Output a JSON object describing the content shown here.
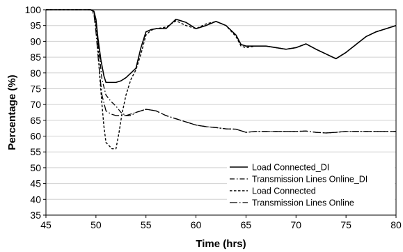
{
  "chart_data": {
    "type": "line",
    "title": "",
    "xlabel": "Time (hrs)",
    "ylabel": "Percentage (%)",
    "xlim": [
      45,
      80
    ],
    "ylim": [
      35,
      100
    ],
    "xticks": [
      "45",
      "50",
      "55",
      "60",
      "65",
      "70",
      "75",
      "80"
    ],
    "yticks": [
      "35",
      "40",
      "45",
      "50",
      "55",
      "60",
      "65",
      "70",
      "75",
      "80",
      "85",
      "90",
      "95",
      "100"
    ],
    "grid": "horizontal",
    "legend": "bottom-right",
    "series": [
      {
        "name": "Load Connected_DI",
        "style": "solid",
        "x": [
          45,
          49.5,
          49.8,
          50,
          50.2,
          50.5,
          50.8,
          51,
          51.5,
          52,
          52.5,
          53,
          53.5,
          54,
          54.5,
          55,
          55.5,
          56,
          57,
          58,
          59,
          60,
          61,
          62,
          63,
          64,
          64.5,
          65,
          66,
          67,
          68,
          69,
          70,
          71,
          72,
          73,
          74,
          75,
          76,
          77,
          78,
          79,
          80
        ],
        "y": [
          100,
          100,
          99.5,
          97,
          91,
          84,
          79,
          77,
          77,
          77,
          77.5,
          78.5,
          80,
          81.5,
          88,
          93,
          93.7,
          94,
          94,
          97,
          96,
          94,
          95,
          96.3,
          95,
          92,
          89,
          88.5,
          88.5,
          88.5,
          88,
          87.5,
          88,
          89.2,
          87.5,
          86,
          84.5,
          86.5,
          89,
          91.5,
          93,
          94,
          95
        ]
      },
      {
        "name": "Transmission Lines Online_DI",
        "style": "dashdot",
        "x": [
          45,
          49.5,
          49.8,
          50,
          50.3,
          50.6,
          51,
          51.5,
          52,
          52.5,
          53,
          53.5,
          54,
          55,
          56,
          57,
          58,
          59,
          60,
          61,
          62,
          63,
          64,
          65,
          66,
          67,
          68,
          69,
          70,
          71,
          72,
          73,
          74,
          75,
          76,
          77,
          78,
          79,
          80
        ],
        "y": [
          100,
          100,
          99,
          95,
          87,
          78,
          73,
          71,
          69.5,
          67.5,
          66.5,
          66.5,
          67.5,
          68.5,
          68,
          66.5,
          65.5,
          64.5,
          63.5,
          63,
          62.7,
          62.3,
          62.2,
          61.2,
          61.5,
          61.5,
          61.5,
          61.5,
          61.5,
          61.6,
          61.2,
          61,
          61.2,
          61.5,
          61.5,
          61.5,
          61.5,
          61.5,
          61.5
        ]
      },
      {
        "name": "Load Connected",
        "style": "dashed",
        "x": [
          45,
          49.5,
          49.8,
          50,
          50.2,
          50.4,
          50.6,
          50.8,
          51,
          51.3,
          51.6,
          52,
          52.3,
          52.6,
          53,
          53.5,
          54,
          54.5,
          55,
          55.5,
          56,
          57,
          58,
          59,
          60,
          61,
          62,
          63,
          64,
          64.5,
          65,
          66,
          67,
          68,
          69,
          70,
          71,
          72,
          73,
          74,
          75,
          76,
          77,
          78,
          79,
          80
        ],
        "y": [
          100,
          100,
          99.3,
          96,
          88,
          78,
          70,
          63,
          58,
          57,
          56,
          56,
          61,
          67,
          73,
          78,
          81,
          86,
          92,
          93.5,
          94,
          94.5,
          96.5,
          95,
          94,
          95.5,
          96.3,
          95,
          91.5,
          88.5,
          88,
          88.5,
          88.5,
          88,
          87.5,
          88,
          89.2,
          87.5,
          86,
          84.5,
          86.5,
          89,
          91.5,
          93,
          94,
          95
        ]
      },
      {
        "name": "Transmission Lines Online",
        "style": "longdash-dot",
        "x": [
          45,
          49.5,
          49.8,
          50,
          50.3,
          50.6,
          51,
          51.5,
          52,
          52.5,
          53,
          54,
          55,
          56,
          57,
          58,
          59,
          60,
          61,
          62,
          63,
          64,
          65,
          66,
          67,
          68,
          69,
          70,
          71,
          72,
          73,
          74,
          75,
          76,
          77,
          78,
          79,
          80
        ],
        "y": [
          100,
          100,
          98.5,
          93,
          82,
          73,
          68,
          67,
          66.5,
          66.5,
          66.5,
          67.5,
          68.5,
          68,
          66.5,
          65.5,
          64.5,
          63.5,
          63,
          62.7,
          62.3,
          62.2,
          61.2,
          61.5,
          61.5,
          61.5,
          61.5,
          61.5,
          61.6,
          61.2,
          61,
          61.2,
          61.5,
          61.5,
          61.5,
          61.5,
          61.5,
          61.5
        ]
      }
    ]
  }
}
